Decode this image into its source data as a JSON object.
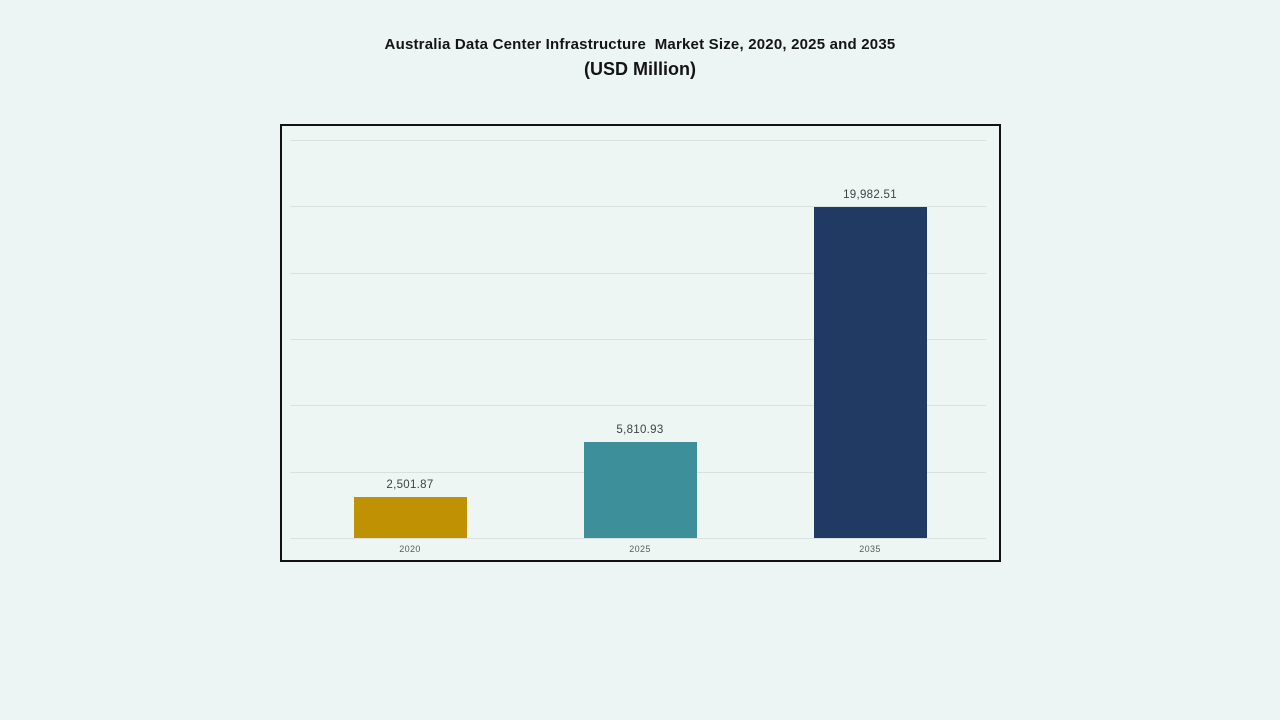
{
  "page": {
    "background_color": "#ecf5f3"
  },
  "title": {
    "line1": "Australia Data Center Infrastructure  Market Size, 2020, 2025 and 2035",
    "line2": "(USD Million)"
  },
  "chart_data": {
    "type": "bar",
    "title": "Australia Data Center Infrastructure Market Size, 2020, 2025 and 2035 (USD Million)",
    "categories": [
      "2020",
      "2025",
      "2035"
    ],
    "values": [
      2501.87,
      5810.93,
      19982.51
    ],
    "value_labels": [
      "2,501.87",
      "5,810.93",
      "19,982.51"
    ],
    "bar_colors": [
      "#BE9202",
      "#3D8F99",
      "#213A63"
    ],
    "xlabel": "",
    "ylabel": "",
    "ylim": [
      0,
      24000
    ],
    "gridline_step": 4000,
    "grid": true,
    "legend": false,
    "frame_border_color": "#121212",
    "gridline_color": "#d9e0e0",
    "value_label_color": "#3d4345",
    "tick_label_color": "#50605f"
  }
}
